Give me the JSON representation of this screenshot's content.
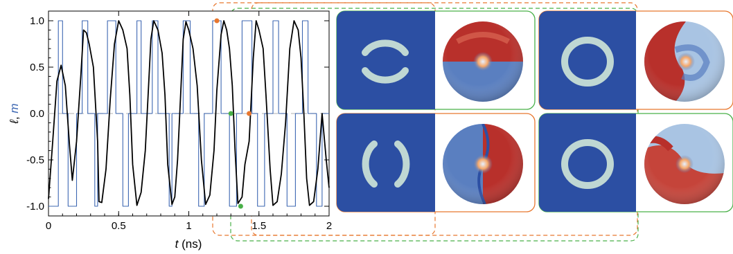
{
  "chart_data": {
    "type": "line",
    "xlabel_var": "t",
    "xlabel_unit": " (ns)",
    "ylabel_l": "ℓ",
    "ylabel_sep": ", ",
    "ylabel_m": "m",
    "xlim": [
      0,
      2
    ],
    "ylim": [
      -1.05,
      1.05
    ],
    "x_ticks": [
      0,
      0.5,
      1,
      1.5,
      2
    ],
    "x_tick_labels": [
      "0",
      "0.5",
      "1",
      "1.5",
      "2"
    ],
    "y_ticks": [
      1.0,
      0.5,
      0.0,
      -0.5,
      -1.0
    ],
    "y_tick_labels": [
      "1.0",
      "0.5",
      "0.0",
      "-0.5",
      "-1.0"
    ],
    "grid": false,
    "zero_line": true,
    "series": [
      {
        "color": "#000000",
        "x": [
          0,
          0.03,
          0.06,
          0.09,
          0.12,
          0.15,
          0.17,
          0.2,
          0.23,
          0.25,
          0.27,
          0.29,
          0.32,
          0.35,
          0.36,
          0.38,
          0.41,
          0.44,
          0.47,
          0.5,
          0.53,
          0.56,
          0.58,
          0.6,
          0.63,
          0.66,
          0.69,
          0.71,
          0.73,
          0.75,
          0.78,
          0.81,
          0.83,
          0.85,
          0.88,
          0.9,
          0.92,
          0.94,
          0.96,
          0.98,
          1.0,
          1.03,
          1.06,
          1.09,
          1.12,
          1.15,
          1.18,
          1.2,
          1.23,
          1.25,
          1.27,
          1.29,
          1.31,
          1.33,
          1.35,
          1.38,
          1.4,
          1.43,
          1.46,
          1.48,
          1.5,
          1.53,
          1.55,
          1.58,
          1.6,
          1.63,
          1.66,
          1.69,
          1.72,
          1.75,
          1.78,
          1.8,
          1.82,
          1.84,
          1.86,
          1.89,
          1.92,
          1.95,
          1.98,
          2.0
        ],
        "values": [
          -0.92,
          -0.3,
          0.35,
          0.52,
          0.3,
          -0.35,
          -0.72,
          -0.3,
          0.4,
          0.9,
          0.87,
          0.75,
          0.5,
          -0.3,
          -0.95,
          -0.96,
          -0.6,
          0.15,
          0.75,
          1.0,
          0.9,
          0.7,
          0.2,
          -0.55,
          -0.99,
          -0.85,
          -0.4,
          0.2,
          0.8,
          1.0,
          0.9,
          0.65,
          0.2,
          -0.55,
          -0.98,
          -0.9,
          -0.5,
          0.15,
          0.8,
          0.99,
          0.9,
          0.7,
          0.3,
          -0.5,
          -0.98,
          -0.88,
          -0.4,
          0.25,
          0.85,
          1.0,
          0.9,
          0.7,
          0.3,
          -0.4,
          -0.97,
          -0.9,
          -0.55,
          -0.3,
          0.6,
          1.0,
          0.9,
          0.7,
          0.2,
          -0.6,
          -0.99,
          -0.95,
          -0.65,
          -0.1,
          0.7,
          1.0,
          0.9,
          0.6,
          0.0,
          -0.7,
          -0.99,
          -0.95,
          -0.6,
          0.0,
          -0.5,
          -0.8
        ]
      },
      {
        "color": "#3d67b2",
        "x": [
          0,
          0.07,
          0.07,
          0.1,
          0.1,
          0.14,
          0.14,
          0.2,
          0.2,
          0.24,
          0.24,
          0.28,
          0.28,
          0.33,
          0.33,
          0.35,
          0.35,
          0.42,
          0.42,
          0.48,
          0.48,
          0.53,
          0.53,
          0.57,
          0.57,
          0.63,
          0.63,
          0.66,
          0.66,
          0.74,
          0.74,
          0.78,
          0.78,
          0.86,
          0.86,
          0.88,
          0.88,
          0.96,
          0.96,
          1.01,
          1.01,
          1.07,
          1.07,
          1.11,
          1.11,
          1.17,
          1.17,
          1.23,
          1.23,
          1.29,
          1.29,
          1.34,
          1.34,
          1.38,
          1.38,
          1.45,
          1.45,
          1.49,
          1.49,
          1.54,
          1.54,
          1.6,
          1.6,
          1.64,
          1.64,
          1.7,
          1.7,
          1.76,
          1.76,
          1.81,
          1.81,
          1.85,
          1.85,
          1.91,
          1.91,
          1.95,
          1.95,
          2.0
        ],
        "values": [
          -1,
          -1,
          1,
          1,
          0,
          0,
          -1,
          -1,
          0,
          0,
          1,
          1,
          0,
          0,
          -1,
          -1,
          0,
          0,
          1,
          1,
          0,
          0,
          -1,
          -1,
          0,
          0,
          1,
          1,
          0,
          0,
          1,
          1,
          0,
          0,
          -1,
          -1,
          0,
          0,
          1,
          1,
          0,
          0,
          -1,
          -1,
          0,
          0,
          1,
          1,
          0,
          0,
          -1,
          -1,
          0,
          0,
          1,
          1,
          0,
          0,
          -1,
          -1,
          0,
          0,
          1,
          1,
          0,
          0,
          -1,
          -1,
          0,
          0,
          1,
          1,
          0,
          0,
          -1,
          -1,
          0,
          0
        ]
      }
    ],
    "markers": [
      {
        "x": 1.2,
        "y": 1.0,
        "color": "#e8772e",
        "frame": "orange"
      },
      {
        "x": 1.3,
        "y": 0.0,
        "color": "#49b048",
        "frame": "green"
      },
      {
        "x": 1.43,
        "y": 0.0,
        "color": "#e8772e",
        "frame": "orange"
      },
      {
        "x": 1.37,
        "y": -1.0,
        "color": "#49b048",
        "frame": "green"
      }
    ]
  },
  "colors": {
    "snapshot_background": "#2c4fa3",
    "ring": "#b9dde5",
    "sphere_red": "#b8302b",
    "sphere_blue": "#5a7fc0",
    "frame_orange": "#e8772e",
    "frame_green": "#49b048",
    "zero_line": "#bfbfbf"
  },
  "snapshots": [
    {
      "position": "top-left",
      "frame": "green",
      "ring": "two-arcs-horizontal",
      "sphere": "red-top-blue-bottom"
    },
    {
      "position": "top-right",
      "frame": "orange",
      "ring": "full",
      "sphere": "red-left-spiral"
    },
    {
      "position": "bottom-left",
      "frame": "orange",
      "ring": "two-arcs-vertical",
      "sphere": "blue-left-red-right"
    },
    {
      "position": "bottom-right",
      "frame": "green",
      "ring": "full",
      "sphere": "red-bottom-left-spiral"
    }
  ]
}
